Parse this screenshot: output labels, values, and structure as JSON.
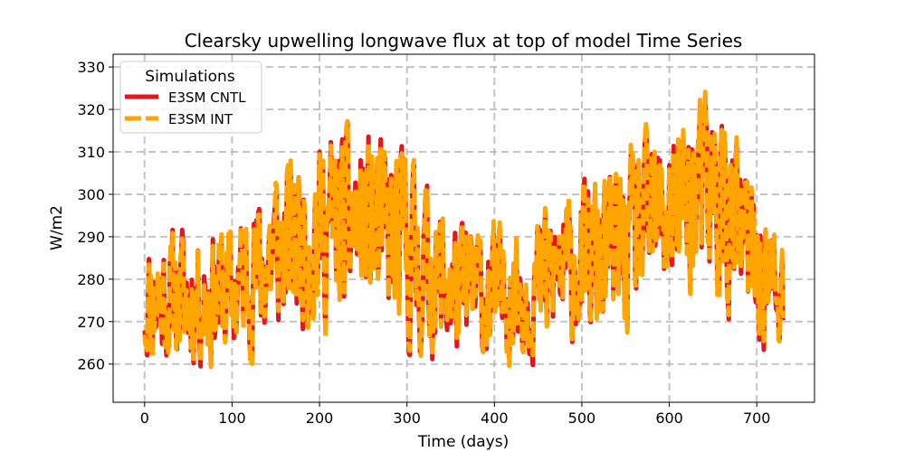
{
  "chart_data": {
    "type": "line",
    "title": "Clearsky upwelling longwave flux at top of model Time Series",
    "xlabel": "Time (days)",
    "ylabel": "W/m2",
    "xlim": [
      -36,
      766
    ],
    "ylim": [
      251,
      333
    ],
    "x_ticks": [
      0,
      100,
      200,
      300,
      400,
      500,
      600,
      700
    ],
    "y_ticks": [
      260,
      270,
      280,
      290,
      300,
      310,
      320,
      330
    ],
    "grid": true,
    "grid_style": "dashed",
    "legend": {
      "title": "Simulations",
      "position": "top-left",
      "entries": [
        "E3SM CNTL",
        "E3SM INT"
      ]
    },
    "x_range_days": [
      0,
      730
    ],
    "envelope_days": [
      0,
      50,
      100,
      150,
      200,
      250,
      300,
      350,
      400,
      450,
      500,
      550,
      600,
      650,
      700,
      730
    ],
    "envelope_low": [
      258,
      256,
      258,
      262,
      265,
      267,
      258,
      257,
      258,
      258,
      262,
      262,
      272,
      270,
      260,
      258
    ],
    "envelope_high": [
      292,
      296,
      296,
      310,
      318,
      320,
      314,
      298,
      294,
      300,
      305,
      312,
      322,
      329,
      306,
      290
    ],
    "series": [
      {
        "name": "E3SM CNTL",
        "color": "#e8141c",
        "style": "solid",
        "seed": 11
      },
      {
        "name": "E3SM INT",
        "color": "#ffa500",
        "style": "dashed",
        "seed": 23
      }
    ]
  }
}
